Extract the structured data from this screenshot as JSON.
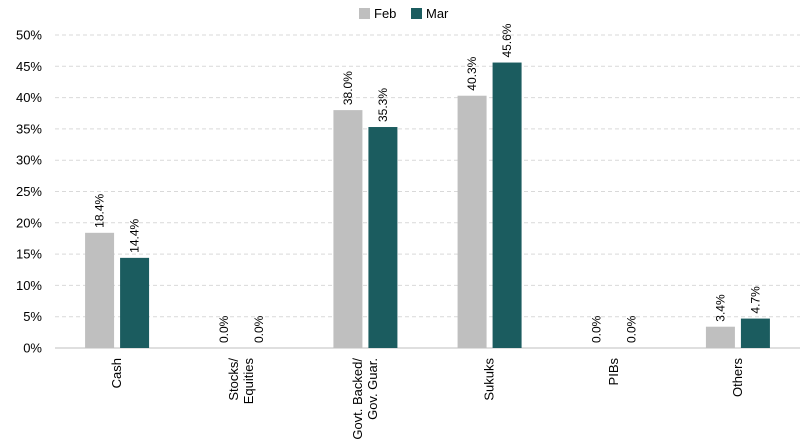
{
  "chart_data": {
    "type": "bar",
    "categories": [
      [
        "Cash"
      ],
      [
        "Stocks/",
        "Equities"
      ],
      [
        "Govt. Backed/",
        "Gov. Guar."
      ],
      [
        "Sukuks"
      ],
      [
        "PIBs"
      ],
      [
        "Others"
      ]
    ],
    "series": [
      {
        "name": "Feb",
        "color": "#bfbfbf",
        "values": [
          18.4,
          0.0,
          38.0,
          40.3,
          0.0,
          3.4
        ],
        "labels": [
          "18.4%",
          "0.0%",
          "38.0%",
          "40.3%",
          "0.0%",
          "3.4%"
        ]
      },
      {
        "name": "Mar",
        "color": "#1b5c5f",
        "values": [
          14.4,
          0.0,
          35.3,
          45.6,
          0.0,
          4.7
        ],
        "labels": [
          "14.4%",
          "0.0%",
          "35.3%",
          "45.6%",
          "0.0%",
          "4.7%"
        ]
      }
    ],
    "yticks": [
      "0%",
      "5%",
      "10%",
      "15%",
      "20%",
      "25%",
      "30%",
      "35%",
      "40%",
      "45%",
      "50%"
    ],
    "ylim": [
      0,
      50
    ],
    "grid": true,
    "legend_position": "top-center",
    "title": "",
    "xlabel": "",
    "ylabel": ""
  }
}
